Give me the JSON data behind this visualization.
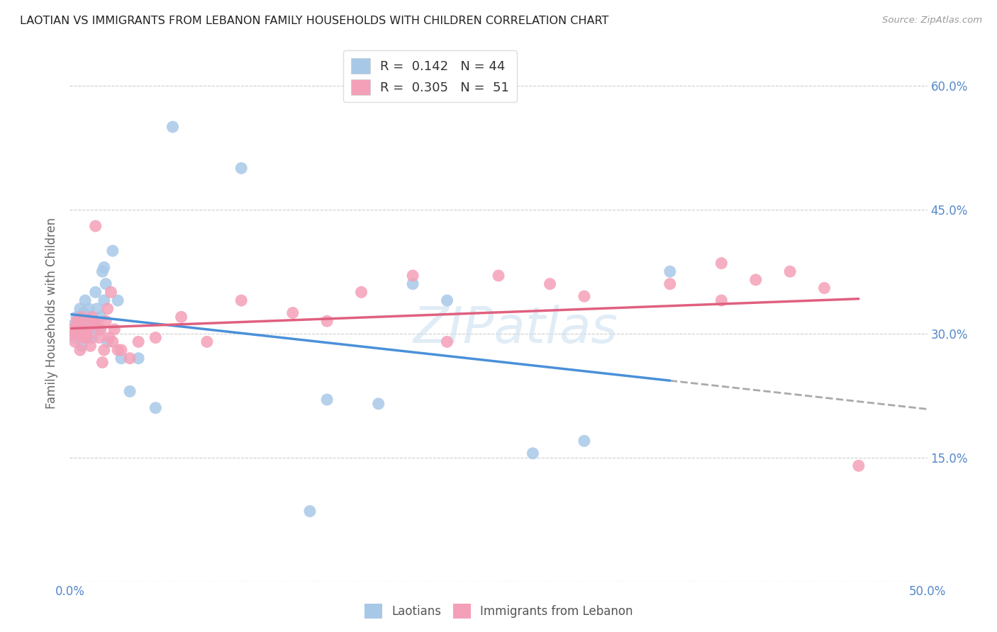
{
  "title": "LAOTIAN VS IMMIGRANTS FROM LEBANON FAMILY HOUSEHOLDS WITH CHILDREN CORRELATION CHART",
  "source": "Source: ZipAtlas.com",
  "ylabel": "Family Households with Children",
  "xlim": [
    0.0,
    0.5
  ],
  "ylim": [
    0.0,
    0.65
  ],
  "xticks": [
    0.0,
    0.05,
    0.1,
    0.15,
    0.2,
    0.25,
    0.3,
    0.35,
    0.4,
    0.45,
    0.5
  ],
  "xtick_labels": [
    "0.0%",
    "",
    "",
    "",
    "",
    "",
    "",
    "",
    "",
    "",
    "50.0%"
  ],
  "yticks": [
    0.0,
    0.15,
    0.3,
    0.45,
    0.6
  ],
  "blue_color": "#a8c8e8",
  "pink_color": "#f4a0b8",
  "trend_blue": "#4a90d9",
  "trend_pink": "#e06080",
  "trend_dash": "#aaaaaa",
  "laotian_x": [
    0.001,
    0.002,
    0.003,
    0.004,
    0.005,
    0.005,
    0.006,
    0.006,
    0.007,
    0.008,
    0.008,
    0.009,
    0.01,
    0.01,
    0.011,
    0.012,
    0.013,
    0.014,
    0.015,
    0.015,
    0.016,
    0.017,
    0.018,
    0.019,
    0.02,
    0.02,
    0.021,
    0.022,
    0.025,
    0.028,
    0.03,
    0.035,
    0.04,
    0.05,
    0.06,
    0.1,
    0.14,
    0.15,
    0.18,
    0.2,
    0.22,
    0.27,
    0.3,
    0.35
  ],
  "laotian_y": [
    0.305,
    0.31,
    0.295,
    0.32,
    0.315,
    0.3,
    0.33,
    0.31,
    0.285,
    0.305,
    0.325,
    0.34,
    0.295,
    0.32,
    0.33,
    0.31,
    0.295,
    0.315,
    0.35,
    0.31,
    0.33,
    0.305,
    0.32,
    0.375,
    0.38,
    0.34,
    0.36,
    0.29,
    0.4,
    0.34,
    0.27,
    0.23,
    0.27,
    0.21,
    0.55,
    0.5,
    0.085,
    0.22,
    0.215,
    0.36,
    0.34,
    0.155,
    0.17,
    0.375
  ],
  "lebanon_x": [
    0.001,
    0.002,
    0.003,
    0.004,
    0.005,
    0.005,
    0.006,
    0.007,
    0.008,
    0.009,
    0.01,
    0.01,
    0.011,
    0.012,
    0.013,
    0.014,
    0.015,
    0.016,
    0.017,
    0.018,
    0.019,
    0.02,
    0.021,
    0.022,
    0.023,
    0.024,
    0.025,
    0.026,
    0.028,
    0.03,
    0.035,
    0.04,
    0.05,
    0.065,
    0.08,
    0.1,
    0.13,
    0.15,
    0.17,
    0.2,
    0.22,
    0.25,
    0.28,
    0.3,
    0.35,
    0.38,
    0.4,
    0.42,
    0.44,
    0.46,
    0.38
  ],
  "lebanon_y": [
    0.305,
    0.3,
    0.29,
    0.315,
    0.3,
    0.31,
    0.28,
    0.32,
    0.295,
    0.31,
    0.3,
    0.295,
    0.305,
    0.285,
    0.32,
    0.315,
    0.43,
    0.31,
    0.295,
    0.305,
    0.265,
    0.28,
    0.315,
    0.33,
    0.295,
    0.35,
    0.29,
    0.305,
    0.28,
    0.28,
    0.27,
    0.29,
    0.295,
    0.32,
    0.29,
    0.34,
    0.325,
    0.315,
    0.35,
    0.37,
    0.29,
    0.37,
    0.36,
    0.345,
    0.36,
    0.385,
    0.365,
    0.375,
    0.355,
    0.14,
    0.34
  ]
}
